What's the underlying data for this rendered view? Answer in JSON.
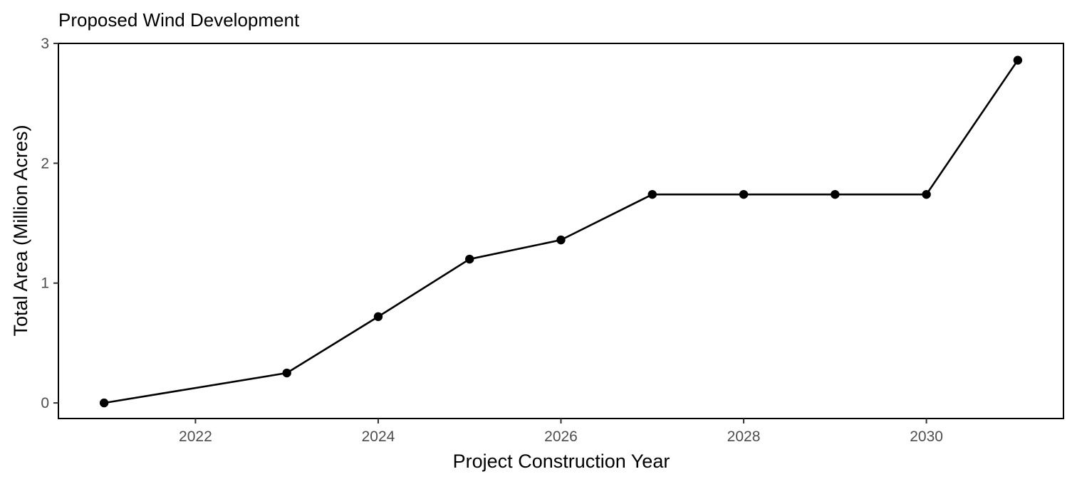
{
  "chart_data": {
    "type": "line",
    "title": "Proposed Wind Development",
    "xlabel": "Project Construction Year",
    "ylabel": "Total Area (Million Acres)",
    "xlim": [
      2020.5,
      2031.5
    ],
    "ylim": [
      -0.13,
      3.0
    ],
    "x_ticks": [
      2022,
      2024,
      2026,
      2028,
      2030
    ],
    "y_ticks": [
      0,
      1,
      2,
      3
    ],
    "grid": false,
    "series": [
      {
        "x": [
          2021,
          2023,
          2024,
          2025,
          2026,
          2027,
          2028,
          2029,
          2030,
          2031
        ],
        "y": [
          0.0,
          0.25,
          0.72,
          1.2,
          1.36,
          1.74,
          1.74,
          1.74,
          1.74,
          2.86
        ],
        "color": "#000000",
        "markers": true
      }
    ]
  }
}
